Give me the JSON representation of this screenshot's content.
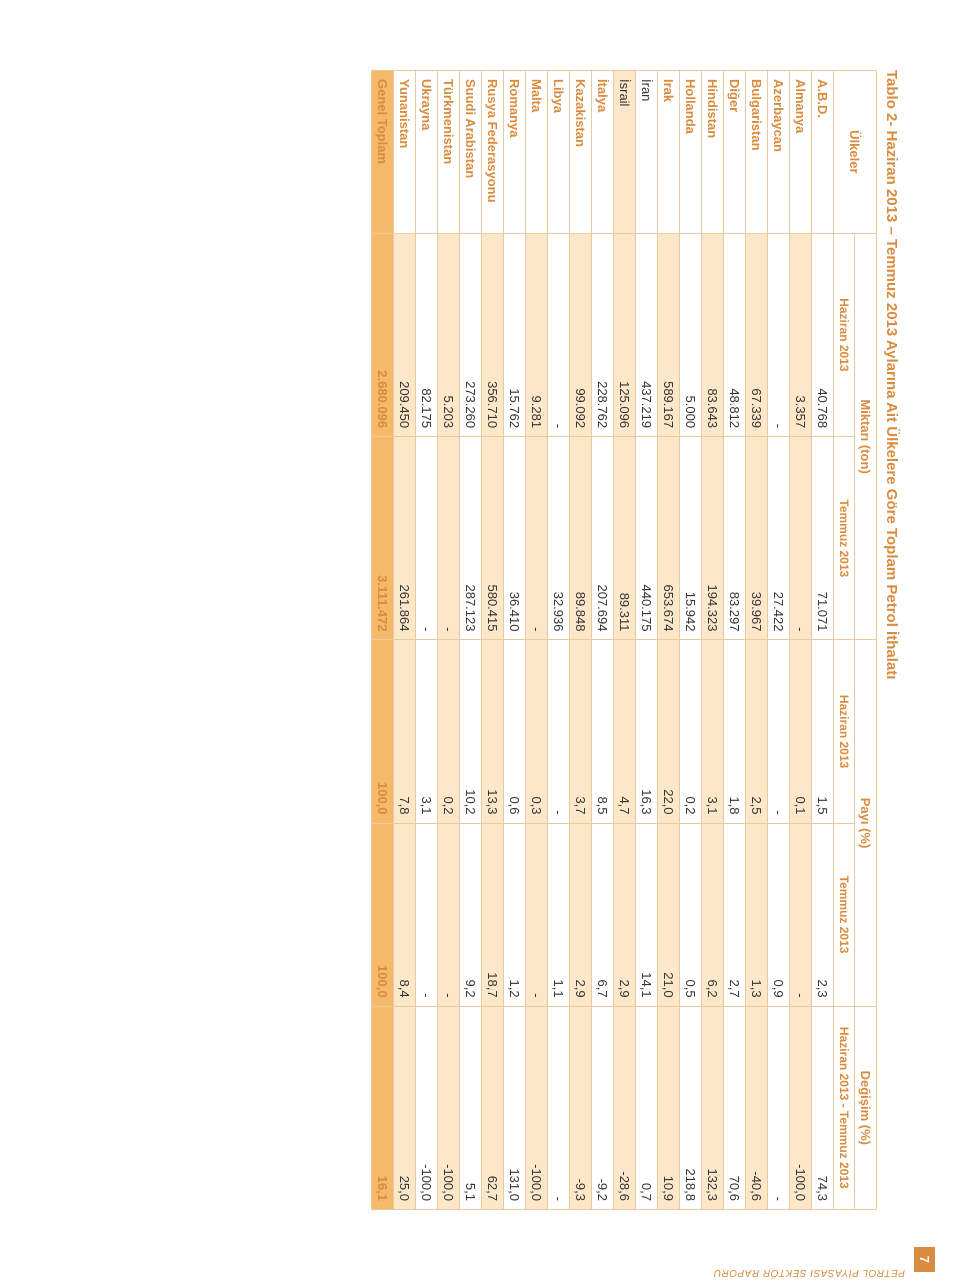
{
  "page_number": "7",
  "side_label": "PETROL PİYASASI SEKTÖR RAPORU",
  "title": "Tablo 2- Haziran 2013 – Temmuz 2013 Aylarına Ait Ülkelere Göre Toplam Petrol İthalatı",
  "headers": {
    "ulkeler": "Ülkeler",
    "miktar": "Miktarı (ton)",
    "payi": "Payı (%)",
    "degisim": "Değişim (%)",
    "haziran": "Haziran 2013",
    "temmuz": "Temmuz 2013",
    "degisim_sub": "Haziran 2013 - Temmuz 2013"
  },
  "colors": {
    "brand": "#d98b3e",
    "stripe": "#fde7c9",
    "total_bg": "#f5b96a",
    "border": "#e8c9a0"
  },
  "rows": [
    {
      "country": "A.B.D.",
      "bold": true,
      "stripe": false,
      "h_ton": "40.768",
      "t_ton": "71.071",
      "h_pay": "1,5",
      "t_pay": "2,3",
      "deg": "74,3"
    },
    {
      "country": "Almanya",
      "bold": true,
      "stripe": true,
      "h_ton": "3.357",
      "t_ton": "-",
      "h_pay": "0,1",
      "t_pay": "-",
      "deg": "-100,0"
    },
    {
      "country": "Azerbaycan",
      "bold": true,
      "stripe": false,
      "h_ton": "-",
      "t_ton": "27.422",
      "h_pay": "-",
      "t_pay": "0,9",
      "deg": "-"
    },
    {
      "country": "Bulgaristan",
      "bold": true,
      "stripe": true,
      "h_ton": "67.339",
      "t_ton": "39.967",
      "h_pay": "2,5",
      "t_pay": "1,3",
      "deg": "-40,6"
    },
    {
      "country": "Diğer",
      "bold": true,
      "stripe": false,
      "h_ton": "48.812",
      "t_ton": "83.297",
      "h_pay": "1,8",
      "t_pay": "2,7",
      "deg": "70,6"
    },
    {
      "country": "Hindistan",
      "bold": true,
      "stripe": true,
      "h_ton": "83.643",
      "t_ton": "194.323",
      "h_pay": "3,1",
      "t_pay": "6,2",
      "deg": "132,3"
    },
    {
      "country": "Hollanda",
      "bold": true,
      "stripe": false,
      "h_ton": "5.000",
      "t_ton": "15.942",
      "h_pay": "0,2",
      "t_pay": "0,5",
      "deg": "218,8"
    },
    {
      "country": "Irak",
      "bold": true,
      "stripe": true,
      "h_ton": "589.167",
      "t_ton": "653.674",
      "h_pay": "22,0",
      "t_pay": "21,0",
      "deg": "10,9"
    },
    {
      "country": "İran",
      "bold": false,
      "stripe": false,
      "h_ton": "437.219",
      "t_ton": "440.175",
      "h_pay": "16,3",
      "t_pay": "14,1",
      "deg": "0,7"
    },
    {
      "country": "İsrail",
      "bold": false,
      "stripe": true,
      "h_ton": "125.096",
      "t_ton": "89.311",
      "h_pay": "4,7",
      "t_pay": "2,9",
      "deg": "-28,6"
    },
    {
      "country": "İtalya",
      "bold": true,
      "stripe": false,
      "h_ton": "228.762",
      "t_ton": "207.694",
      "h_pay": "8,5",
      "t_pay": "6,7",
      "deg": "-9,2"
    },
    {
      "country": "Kazakistan",
      "bold": true,
      "stripe": true,
      "h_ton": "99.092",
      "t_ton": "89.848",
      "h_pay": "3,7",
      "t_pay": "2,9",
      "deg": "-9,3"
    },
    {
      "country": "Libya",
      "bold": true,
      "stripe": false,
      "h_ton": "-",
      "t_ton": "32.936",
      "h_pay": "-",
      "t_pay": "1,1",
      "deg": "-"
    },
    {
      "country": "Malta",
      "bold": true,
      "stripe": true,
      "h_ton": "9.281",
      "t_ton": "-",
      "h_pay": "0,3",
      "t_pay": "-",
      "deg": "-100,0"
    },
    {
      "country": "Romanya",
      "bold": true,
      "stripe": false,
      "h_ton": "15.762",
      "t_ton": "36.410",
      "h_pay": "0,6",
      "t_pay": "1,2",
      "deg": "131,0"
    },
    {
      "country": "Rusya Federasyonu",
      "bold": true,
      "stripe": true,
      "h_ton": "356.710",
      "t_ton": "580.415",
      "h_pay": "13,3",
      "t_pay": "18,7",
      "deg": "62,7"
    },
    {
      "country": "Suudi Arabistan",
      "bold": true,
      "stripe": false,
      "h_ton": "273.260",
      "t_ton": "287.123",
      "h_pay": "10,2",
      "t_pay": "9,2",
      "deg": "5,1"
    },
    {
      "country": "Türkmenistan",
      "bold": true,
      "stripe": true,
      "h_ton": "5.203",
      "t_ton": "-",
      "h_pay": "0,2",
      "t_pay": "-",
      "deg": "-100,0"
    },
    {
      "country": "Ukrayna",
      "bold": true,
      "stripe": false,
      "h_ton": "82.175",
      "t_ton": "-",
      "h_pay": "3,1",
      "t_pay": "-",
      "deg": "-100,0"
    },
    {
      "country": "Yunanistan",
      "bold": true,
      "stripe": true,
      "h_ton": "209.450",
      "t_ton": "261.864",
      "h_pay": "7,8",
      "t_pay": "8,4",
      "deg": "25,0"
    }
  ],
  "total": {
    "country": "Genel Toplam",
    "h_ton": "2.680.096",
    "t_ton": "3.111.472",
    "h_pay": "100,0",
    "t_pay": "100,0",
    "deg": "16,1"
  }
}
